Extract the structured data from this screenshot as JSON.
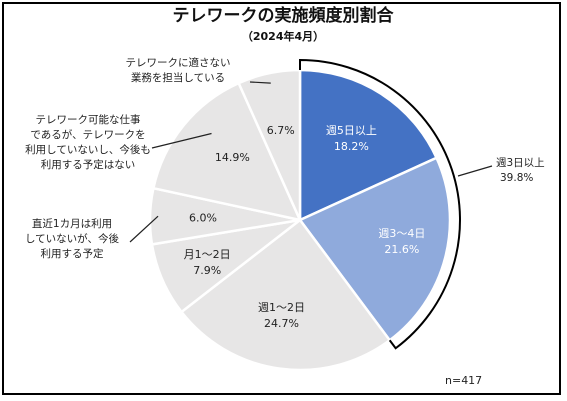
{
  "chart_data": {
    "type": "pie",
    "title": "テレワークの実施頻度別割合",
    "subtitle": "（2024年4月）",
    "sample_size": "n=417",
    "unit": "%",
    "slices": [
      {
        "name": "週5日以上",
        "value": 18.2,
        "label": "18.2%",
        "color": "#4472c4"
      },
      {
        "name": "週3〜4日",
        "value": 21.6,
        "label": "21.6%",
        "color": "#8faadc"
      },
      {
        "name": "週1〜2日",
        "value": 24.7,
        "label": "24.7%",
        "color": "#e7e6e6"
      },
      {
        "name": "月1〜2日",
        "value": 7.9,
        "label": "7.9%",
        "color": "#e7e6e6"
      },
      {
        "name": "直近1カ月は利用していないが、今後利用する予定",
        "value": 6.0,
        "label": "6.0%",
        "color": "#e7e6e6"
      },
      {
        "name": "テレワーク可能な仕事であるが、テレワークを利用していないし、今後も利用する予定はない",
        "value": 14.9,
        "label": "14.9%",
        "color": "#e7e6e6"
      },
      {
        "name": "テレワークに適さない業務を担当している",
        "value": 6.7,
        "label": "6.7%",
        "color": "#e7e6e6"
      }
    ],
    "group_bracket": {
      "label": "週3日以上",
      "value": "39.8%"
    }
  },
  "labels": {
    "週5日以上": [
      "週5日以上"
    ],
    "週3〜4日": [
      "週3〜4日"
    ],
    "週1〜2日": [
      "週1〜2日"
    ],
    "月1〜2日": [
      "月1〜2日"
    ],
    "直近": [
      "直近1カ月は利用",
      "していないが、今後",
      "利用する予定"
    ],
    "可能": [
      "テレワーク可能な仕事",
      "であるが、テレワークを",
      "利用していないし、今後も",
      "利用する予定はない"
    ],
    "適さない": [
      "テレワークに適さない",
      "業務を担当している"
    ]
  }
}
